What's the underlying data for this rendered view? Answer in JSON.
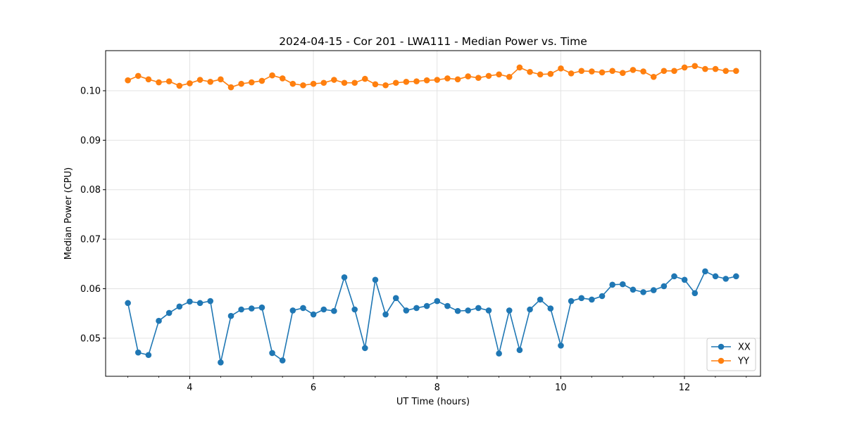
{
  "chart_data": {
    "type": "line",
    "title": "2024-04-15 - Cor 201 - LWA111 - Median Power vs. Time",
    "xlabel": "UT Time (hours)",
    "ylabel": "Median Power (CPU)",
    "xlim": [
      2.64,
      13.23
    ],
    "ylim": [
      0.0423,
      0.1081
    ],
    "xticks": [
      4,
      6,
      8,
      10,
      12
    ],
    "xtick_labels": [
      "4",
      "6",
      "8",
      "10",
      "12"
    ],
    "x_minor_step": 0.5,
    "yticks": [
      0.05,
      0.06,
      0.07,
      0.08,
      0.09,
      0.1
    ],
    "ytick_labels": [
      "0.05",
      "0.06",
      "0.07",
      "0.08",
      "0.09",
      "0.10"
    ],
    "grid": true,
    "legend_position": "lower-right",
    "x_start": 3.0,
    "x_step": 0.1667,
    "series": [
      {
        "name": "XX",
        "color": "#1f77b4",
        "values": [
          0.0571,
          0.0471,
          0.0466,
          0.0535,
          0.0551,
          0.0564,
          0.0574,
          0.0571,
          0.0575,
          0.0451,
          0.0545,
          0.0558,
          0.056,
          0.0562,
          0.047,
          0.0455,
          0.0556,
          0.0561,
          0.0548,
          0.0558,
          0.0555,
          0.0623,
          0.0558,
          0.048,
          0.0618,
          0.0548,
          0.0581,
          0.0556,
          0.0561,
          0.0565,
          0.0575,
          0.0565,
          0.0555,
          0.0556,
          0.0561,
          0.0556,
          0.0469,
          0.0556,
          0.0476,
          0.0558,
          0.0578,
          0.056,
          0.0485,
          0.0575,
          0.0581,
          0.0578,
          0.0585,
          0.0608,
          0.0609,
          0.0598,
          0.0593,
          0.0597,
          0.0605,
          0.0625,
          0.0618,
          0.0591,
          0.0635,
          0.0625,
          0.062,
          0.0625
        ]
      },
      {
        "name": "YY",
        "color": "#ff7f0e",
        "values": [
          0.1021,
          0.103,
          0.1023,
          0.1017,
          0.1019,
          0.101,
          0.1015,
          0.1022,
          0.1018,
          0.1023,
          0.1007,
          0.1014,
          0.1017,
          0.102,
          0.1031,
          0.1025,
          0.1014,
          0.1011,
          0.1014,
          0.1016,
          0.1022,
          0.1016,
          0.1016,
          0.1024,
          0.1013,
          0.1011,
          0.1016,
          0.1018,
          0.1019,
          0.1021,
          0.1022,
          0.1025,
          0.1023,
          0.1029,
          0.1026,
          0.103,
          0.1033,
          0.1028,
          0.1047,
          0.1038,
          0.1033,
          0.1034,
          0.1045,
          0.1035,
          0.104,
          0.1039,
          0.1037,
          0.104,
          0.1036,
          0.1042,
          0.1039,
          0.1028,
          0.104,
          0.104,
          0.1047,
          0.105,
          0.1044,
          0.1044,
          0.104,
          0.104
        ]
      }
    ]
  }
}
